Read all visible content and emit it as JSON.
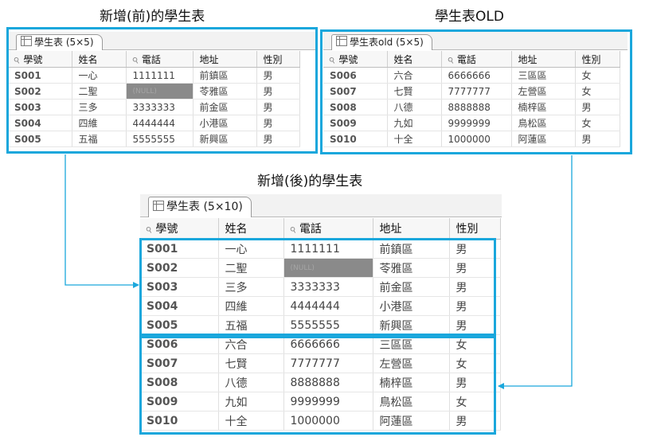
{
  "captions": {
    "before": "新增(前)的學生表",
    "old": "學生表OLD",
    "after": "新增(後)的學生表"
  },
  "tables": {
    "before": {
      "tab": "學生表 (5×5)",
      "headers": [
        "學號",
        "姓名",
        "電話",
        "地址",
        "性別"
      ],
      "rows": [
        [
          "S001",
          "一心",
          "1111111",
          "前鎮區",
          "男"
        ],
        [
          "S002",
          "二聖",
          "(NULL)",
          "苓雅區",
          "男"
        ],
        [
          "S003",
          "三多",
          "3333333",
          "前金區",
          "男"
        ],
        [
          "S004",
          "四維",
          "4444444",
          "小港區",
          "男"
        ],
        [
          "S005",
          "五福",
          "5555555",
          "新興區",
          "男"
        ]
      ]
    },
    "old": {
      "tab": "學生表old (5×5)",
      "headers": [
        "學號",
        "姓名",
        "電話",
        "地址",
        "性別"
      ],
      "rows": [
        [
          "S006",
          "六合",
          "6666666",
          "三區區",
          "女"
        ],
        [
          "S007",
          "七賢",
          "7777777",
          "左營區",
          "女"
        ],
        [
          "S008",
          "八德",
          "8888888",
          "楠梓區",
          "男"
        ],
        [
          "S009",
          "九如",
          "9999999",
          "鳥松區",
          "女"
        ],
        [
          "S010",
          "十全",
          "1000000",
          "阿蓮區",
          "男"
        ]
      ]
    },
    "after": {
      "tab": "學生表 (5×10)",
      "headers": [
        "學號",
        "姓名",
        "電話",
        "地址",
        "性別"
      ],
      "rows": [
        [
          "S001",
          "一心",
          "1111111",
          "前鎮區",
          "男"
        ],
        [
          "S002",
          "二聖",
          "(NULL)",
          "苓雅區",
          "男"
        ],
        [
          "S003",
          "三多",
          "3333333",
          "前金區",
          "男"
        ],
        [
          "S004",
          "四維",
          "4444444",
          "小港區",
          "男"
        ],
        [
          "S005",
          "五福",
          "5555555",
          "新興區",
          "男"
        ],
        [
          "S006",
          "六合",
          "6666666",
          "三區區",
          "女"
        ],
        [
          "S007",
          "七賢",
          "7777777",
          "左營區",
          "女"
        ],
        [
          "S008",
          "八德",
          "8888888",
          "楠梓區",
          "男"
        ],
        [
          "S009",
          "九如",
          "9999999",
          "鳥松區",
          "女"
        ],
        [
          "S010",
          "十全",
          "1000000",
          "阿蓮區",
          "男"
        ]
      ]
    }
  },
  "colors": {
    "highlight": "#1aa7dc",
    "masked_cell": "#8a8a8a"
  }
}
